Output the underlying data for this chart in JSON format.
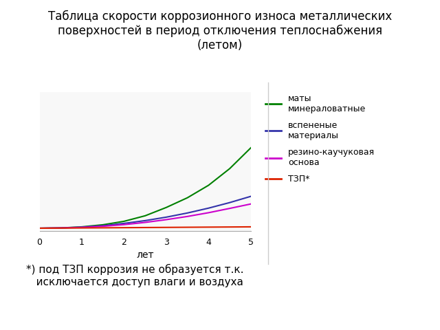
{
  "title": "Таблица скорости коррозионного износа металлических\nповерхностей в период отключения теплоснабжения\n(летом)",
  "xlabel": "лет",
  "xlim": [
    0,
    5
  ],
  "ylim": [
    0,
    1
  ],
  "xticks": [
    0,
    1,
    2,
    3,
    4,
    5
  ],
  "series": [
    {
      "label": "маты\nминераловатные",
      "color": "#008000",
      "x": [
        0,
        0.5,
        1.0,
        1.5,
        2.0,
        2.5,
        3.0,
        3.5,
        4.0,
        4.5,
        5.0
      ],
      "y": [
        0.02,
        0.022,
        0.03,
        0.045,
        0.07,
        0.11,
        0.17,
        0.24,
        0.33,
        0.45,
        0.6
      ]
    },
    {
      "label": "вспененые\nматериалы",
      "color": "#3333aa",
      "x": [
        0,
        0.5,
        1.0,
        1.5,
        2.0,
        2.5,
        3.0,
        3.5,
        4.0,
        4.5,
        5.0
      ],
      "y": [
        0.02,
        0.022,
        0.028,
        0.038,
        0.055,
        0.075,
        0.1,
        0.13,
        0.165,
        0.205,
        0.25
      ]
    },
    {
      "label": "резино-каучуковая\nоснова",
      "color": "#cc00cc",
      "x": [
        0,
        0.5,
        1.0,
        1.5,
        2.0,
        2.5,
        3.0,
        3.5,
        4.0,
        4.5,
        5.0
      ],
      "y": [
        0.02,
        0.022,
        0.026,
        0.034,
        0.046,
        0.062,
        0.082,
        0.105,
        0.132,
        0.163,
        0.195
      ]
    },
    {
      "label": "ТЗП*",
      "color": "#dd2200",
      "x": [
        0,
        0.5,
        1.0,
        1.5,
        2.0,
        2.5,
        3.0,
        3.5,
        4.0,
        4.5,
        5.0
      ],
      "y": [
        0.02,
        0.021,
        0.022,
        0.023,
        0.024,
        0.025,
        0.026,
        0.027,
        0.028,
        0.029,
        0.03
      ]
    }
  ],
  "footnote": "*) под ТЗП коррозия не образуется т.к.\n   исключается доступ влаги и воздуха",
  "background_color": "#ffffff",
  "plot_bg_color": "#f8f8f8",
  "title_fontsize": 12,
  "legend_fontsize": 9,
  "footnote_fontsize": 11
}
